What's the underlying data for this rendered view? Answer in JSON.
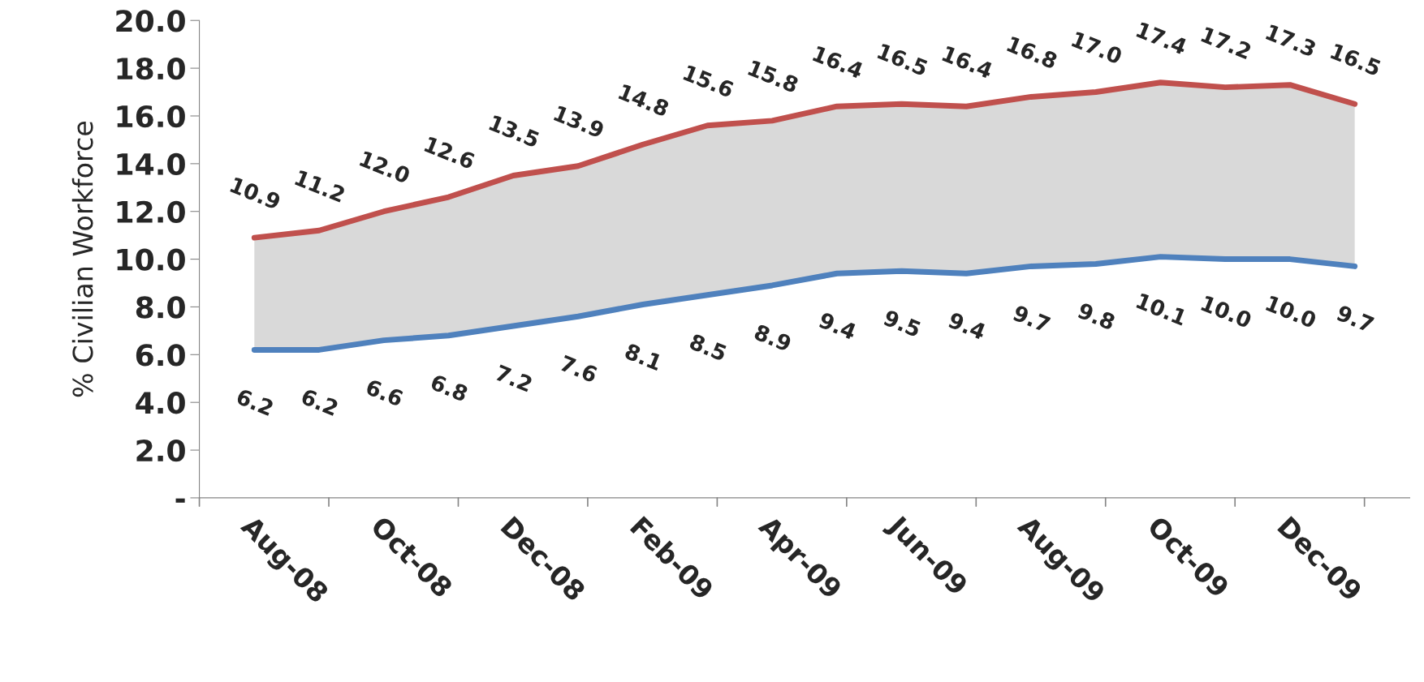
{
  "chart_data": {
    "type": "line",
    "ylabel": "% Civilian Workforce",
    "categories": [
      "Aug-08",
      null,
      "Oct-08",
      null,
      "Dec-08",
      null,
      "Feb-09",
      null,
      "Apr-09",
      null,
      "Jun-09",
      null,
      "Aug-09",
      null,
      "Oct-09",
      null,
      "Dec-09",
      null
    ],
    "series": [
      {
        "color": "#c0504d",
        "values": [
          10.9,
          11.2,
          12.0,
          12.6,
          13.5,
          13.9,
          14.8,
          15.6,
          15.8,
          16.4,
          16.5,
          16.4,
          16.8,
          17.0,
          17.4,
          17.2,
          17.3,
          16.5
        ],
        "value_labels": [
          "10.9",
          "11.2",
          "12.0",
          "12.6",
          "13.5",
          "13.9",
          "14.8",
          "15.6",
          "15.8",
          "16.4",
          "16.5",
          "16.4",
          "16.8",
          "17.0",
          "17.4",
          "17.2",
          "17.3",
          "16.5"
        ],
        "lower": [
          6.2,
          6.2,
          6.6,
          6.8,
          7.2,
          7.6,
          8.1,
          8.5,
          8.9,
          9.4,
          9.5,
          9.4,
          9.7,
          9.8,
          10.1,
          10.0,
          10.0,
          9.7
        ],
        "upper": [
          10.9,
          11.2,
          12.0,
          12.6,
          13.5,
          13.9,
          14.8,
          15.6,
          15.8,
          16.4,
          16.5,
          16.4,
          16.8,
          17.0,
          17.4,
          17.2,
          17.3,
          16.5
        ]
      },
      {
        "color": "#4f81bd",
        "values": [
          6.2,
          6.2,
          6.6,
          6.8,
          7.2,
          7.6,
          8.1,
          8.5,
          8.9,
          9.4,
          9.5,
          9.4,
          9.7,
          9.8,
          10.1,
          10.0,
          10.0,
          9.7
        ],
        "value_labels": [
          "6.2",
          "6.2",
          "6.6",
          "6.8",
          "7.2",
          "7.6",
          "8.1",
          "8.5",
          "8.9",
          "9.4",
          "9.5",
          "9.4",
          "9.7",
          "9.8",
          "10.1",
          "10.0",
          "10.0",
          "9.7"
        ]
      }
    ],
    "ylim": [
      0,
      20
    ],
    "yticks": [
      {
        "value": 0,
        "label": "-"
      },
      {
        "value": 2,
        "label": "2.0"
      },
      {
        "value": 4,
        "label": "4.0"
      },
      {
        "value": 6,
        "label": "6.0"
      },
      {
        "value": 8,
        "label": "8.0"
      },
      {
        "value": 10,
        "label": "10.0"
      },
      {
        "value": 12,
        "label": "12.0"
      },
      {
        "value": 14,
        "label": "14.0"
      },
      {
        "value": 16,
        "label": "16.0"
      },
      {
        "value": 18,
        "label": "18.0"
      },
      {
        "value": 20,
        "label": "20.0"
      }
    ],
    "grid": false,
    "legend": false,
    "marker": "none",
    "line_style": "solid"
  }
}
